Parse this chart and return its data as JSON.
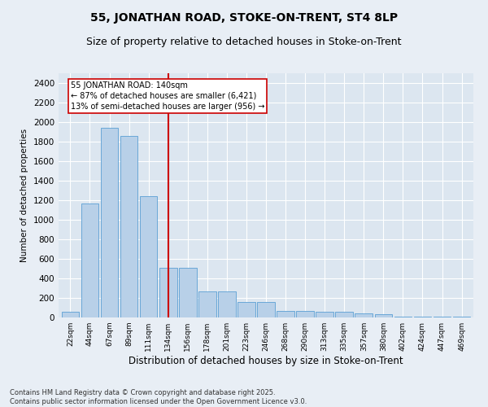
{
  "title": "55, JONATHAN ROAD, STOKE-ON-TRENT, ST4 8LP",
  "subtitle": "Size of property relative to detached houses in Stoke-on-Trent",
  "xlabel": "Distribution of detached houses by size in Stoke-on-Trent",
  "ylabel": "Number of detached properties",
  "categories": [
    "22sqm",
    "44sqm",
    "67sqm",
    "89sqm",
    "111sqm",
    "134sqm",
    "156sqm",
    "178sqm",
    "201sqm",
    "223sqm",
    "246sqm",
    "268sqm",
    "290sqm",
    "313sqm",
    "335sqm",
    "357sqm",
    "380sqm",
    "402sqm",
    "424sqm",
    "447sqm",
    "469sqm"
  ],
  "values": [
    55,
    1170,
    1940,
    1860,
    1240,
    510,
    510,
    265,
    265,
    160,
    160,
    65,
    65,
    55,
    55,
    40,
    35,
    10,
    5,
    5,
    5
  ],
  "bar_color": "#b8d0e8",
  "bar_edge_color": "#5a9fd4",
  "vline_x_index": 5,
  "vline_color": "#cc0000",
  "annotation_text": "55 JONATHAN ROAD: 140sqm\n← 87% of detached houses are smaller (6,421)\n13% of semi-detached houses are larger (956) →",
  "annotation_box_color": "#ffffff",
  "annotation_box_edge": "#cc0000",
  "ylim": [
    0,
    2500
  ],
  "yticks": [
    0,
    200,
    400,
    600,
    800,
    1000,
    1200,
    1400,
    1600,
    1800,
    2000,
    2200,
    2400
  ],
  "bg_color": "#e8eef5",
  "plot_bg_color": "#dce6f0",
  "footer": "Contains HM Land Registry data © Crown copyright and database right 2025.\nContains public sector information licensed under the Open Government Licence v3.0.",
  "title_fontsize": 10,
  "subtitle_fontsize": 9
}
